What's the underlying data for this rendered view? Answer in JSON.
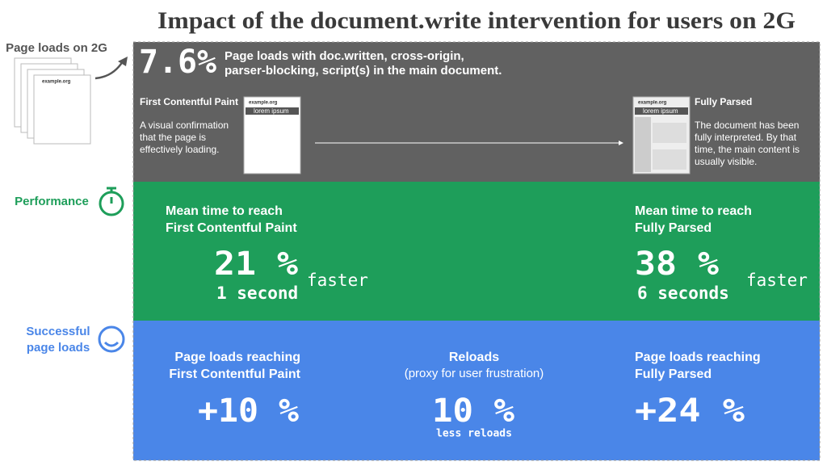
{
  "title": "Impact of the document.write intervention for users on 2G",
  "sidebar": {
    "page_loads": "Page loads on 2G",
    "browser_url": "example.org",
    "performance": "Performance",
    "successful": [
      "Successful",
      "page loads"
    ]
  },
  "header": {
    "stat": "7.6%",
    "description": [
      "Page loads with doc.written, cross-origin,",
      "parser-blocking, script(s) in the main document."
    ]
  },
  "milestones": [
    {
      "title": "First Contentful Paint",
      "description": [
        "A visual confirmation",
        "that the page is",
        "effectively loading."
      ],
      "mock_url": "example.org",
      "mock_heading": "lorem ipsum"
    },
    {
      "title": "Fully Parsed",
      "description": [
        "The document has been",
        "fully interpreted. By that",
        "time, the main content is",
        "usually visible."
      ],
      "mock_url": "example.org",
      "mock_heading": "lorem ipsum"
    }
  ],
  "performance": [
    {
      "heading": [
        "Mean time to reach",
        "First Contentful Paint"
      ],
      "value": "21 %",
      "detail": "1 second",
      "unit": "faster"
    },
    {
      "heading": [
        "Mean time to reach",
        "Fully Parsed"
      ],
      "value": "38 %",
      "detail": "6 seconds",
      "unit": "faster"
    }
  ],
  "success": [
    {
      "heading": [
        "Page loads reaching",
        "First Contentful Paint"
      ],
      "value": "+10 %"
    },
    {
      "heading": [
        "Reloads"
      ],
      "note": "(proxy for user frustration)",
      "value": "10 %",
      "detail": "less reloads"
    },
    {
      "heading": [
        "Page loads reaching",
        "Fully Parsed"
      ],
      "value": "+24 %"
    }
  ]
}
